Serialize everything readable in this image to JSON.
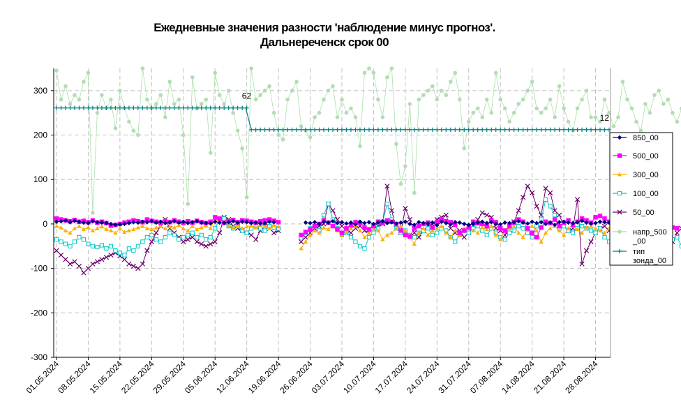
{
  "title_line1": "Ежедневные значения разности 'наблюдение минус прогноз'.",
  "title_line2": "Дальнереченск    срок 00",
  "chart_data": {
    "type": "line",
    "title": "Ежедневные значения разности 'наблюдение минус прогноз'. Дальнереченск    срок 00",
    "xlabel": "",
    "ylabel": "",
    "ylim": [
      -300,
      350
    ],
    "yticks": [
      300,
      200,
      100,
      0,
      -100,
      -200,
      -300
    ],
    "x_start": "2024-05-01",
    "x_end": "2024-08-31",
    "xticks": [
      "01.05.2024",
      "08.05.2024",
      "15.05.2024",
      "22.05.2024",
      "29.05.2024",
      "05.06.2024",
      "12.06.2024",
      "19.06.2024",
      "26.06.2024",
      "03.07.2024",
      "10.07.2024",
      "17.07.2024",
      "24.07.2024",
      "31.07.2024",
      "07.08.2024",
      "14.08.2024",
      "21.08.2024",
      "28.08.2024"
    ],
    "grid": true,
    "legend_position": "right",
    "annotations": [
      {
        "text": "62",
        "x": "2024-06-13",
        "y": 261
      },
      {
        "text": "12",
        "x": "2024-08-31",
        "y": 212
      }
    ],
    "series": [
      {
        "name": "850_00",
        "color": "#000080",
        "marker": "diamond",
        "values": [
          5,
          6,
          8,
          4,
          7,
          5,
          3,
          2,
          6,
          4,
          3,
          2,
          0,
          -2,
          -1,
          0,
          2,
          4,
          3,
          5,
          4,
          6,
          3,
          5,
          2,
          4,
          6,
          3,
          5,
          2,
          4,
          6,
          3,
          2,
          1,
          5,
          3,
          2,
          4,
          6,
          3,
          5,
          4,
          2,
          3,
          1,
          2,
          5,
          4,
          null,
          null,
          null,
          null,
          null,
          null,
          3,
          2,
          4,
          0,
          5,
          3,
          6,
          2,
          4,
          1,
          3,
          -1,
          5,
          2,
          4,
          0,
          3,
          6,
          2,
          4,
          1,
          3,
          5,
          0,
          -2,
          4,
          2,
          1,
          3,
          -3,
          5,
          2,
          -1,
          4,
          3,
          0,
          -2,
          1,
          3,
          5,
          2,
          4,
          0,
          -1,
          3,
          2,
          4,
          6,
          3,
          1,
          5,
          2,
          4,
          0,
          3,
          -2,
          4,
          5,
          3,
          2,
          4,
          7,
          3,
          1,
          2,
          5,
          4,
          3,
          6,
          2,
          4,
          3,
          -1,
          2,
          5,
          3,
          4,
          -2,
          0,
          1
        ]
      },
      {
        "name": "500_00",
        "color": "#ff00ff",
        "marker": "square",
        "values": [
          12,
          10,
          8,
          6,
          9,
          5,
          7,
          4,
          8,
          3,
          5,
          2,
          -4,
          -2,
          0,
          3,
          5,
          8,
          6,
          4,
          10,
          7,
          5,
          3,
          6,
          4,
          8,
          5,
          2,
          6,
          3,
          7,
          4,
          2,
          5,
          15,
          12,
          3,
          6,
          9,
          4,
          8,
          7,
          5,
          3,
          6,
          8,
          10,
          7,
          4,
          null,
          null,
          null,
          null,
          -25,
          -18,
          -12,
          -5,
          0,
          8,
          3,
          -5,
          -12,
          -20,
          -10,
          -3,
          4,
          2,
          -8,
          -12,
          -5,
          5,
          2,
          8,
          5,
          0,
          -15,
          -25,
          -28,
          -10,
          -5,
          0,
          3,
          -8,
          5,
          10,
          6,
          4,
          -2,
          -20,
          -15,
          -8,
          5,
          2,
          0,
          -5,
          8,
          4,
          -10,
          -15,
          -5,
          3,
          10,
          5,
          -10,
          -20,
          -30,
          -8,
          5,
          2,
          10,
          -5,
          3,
          8,
          -2,
          5,
          12,
          8,
          3,
          15,
          18,
          12,
          5,
          20,
          15,
          8,
          3,
          22,
          18,
          10,
          5,
          15,
          12,
          8,
          3,
          -5,
          -8,
          -10
        ]
      },
      {
        "name": "300_00",
        "color": "#ffb000",
        "marker": "triangle",
        "values": [
          -5,
          -8,
          -15,
          -20,
          -10,
          -5,
          -12,
          -8,
          -15,
          -10,
          -6,
          -12,
          -15,
          -20,
          -10,
          -18,
          -15,
          -12,
          -8,
          -5,
          -10,
          -12,
          -8,
          -5,
          -10,
          -6,
          -8,
          -3,
          -10,
          -15,
          -5,
          -12,
          -8,
          -4,
          -10,
          10,
          8,
          6,
          -5,
          -8,
          -3,
          -10,
          -6,
          -4,
          -8,
          -2,
          -5,
          -10,
          -3,
          -6,
          null,
          null,
          null,
          null,
          -55,
          -40,
          -25,
          -15,
          -20,
          -8,
          -12,
          -5,
          -15,
          -25,
          -18,
          -10,
          -5,
          -15,
          -30,
          -20,
          -10,
          -15,
          -35,
          -25,
          -20,
          -10,
          -5,
          -15,
          -30,
          -45,
          -20,
          -10,
          -25,
          -15,
          -10,
          -5,
          -20,
          -30,
          -15,
          -25,
          -10,
          -5,
          -15,
          -20,
          -8,
          -12,
          -5,
          -25,
          -35,
          -15,
          -10,
          -5,
          -20,
          -30,
          -10,
          -5,
          -15,
          -40,
          -20,
          -10,
          -5,
          -15,
          -25,
          -10,
          -5,
          -12,
          -20,
          -8,
          -5,
          -10,
          -15,
          -20,
          -10,
          -5,
          -12,
          -8,
          -15,
          -20,
          -10,
          -5,
          -12,
          -15,
          -20,
          -10,
          -15,
          -45
        ]
      },
      {
        "name": "100_00",
        "color": "#00c8c8",
        "marker": "square-open",
        "values": [
          -35,
          -40,
          -45,
          -50,
          -40,
          -30,
          -35,
          -45,
          -50,
          -52,
          -48,
          -55,
          -50,
          -60,
          -65,
          -70,
          -55,
          -60,
          -50,
          -40,
          -30,
          -25,
          -35,
          -40,
          -30,
          -20,
          -25,
          -35,
          -30,
          -25,
          -20,
          -30,
          -25,
          -35,
          -30,
          -10,
          10,
          12,
          -5,
          -10,
          -5,
          -15,
          -20,
          -10,
          -5,
          -10,
          -15,
          -5,
          -8,
          -10,
          null,
          null,
          null,
          null,
          -30,
          -20,
          -10,
          -5,
          -15,
          20,
          45,
          10,
          -10,
          -25,
          -20,
          -30,
          -40,
          -50,
          -55,
          -30,
          -20,
          -10,
          5,
          45,
          10,
          -10,
          -20,
          -15,
          -25,
          -30,
          -20,
          -15,
          -10,
          -25,
          -20,
          -10,
          -15,
          -30,
          -40,
          -25,
          -15,
          -20,
          -10,
          -5,
          -15,
          -25,
          -10,
          -20,
          -30,
          -35,
          -20,
          -15,
          -5,
          -10,
          -20,
          -30,
          -5,
          10,
          55,
          40,
          20,
          -10,
          -5,
          -15,
          -20,
          -10,
          -5,
          -10,
          -15,
          -20,
          -10,
          -30,
          -40,
          -20,
          -15,
          -10,
          -5,
          -30,
          -45,
          -60,
          -75,
          -50,
          -40,
          -20,
          -30,
          -40,
          -35,
          -30,
          -50
        ]
      },
      {
        "name": "50_00",
        "color": "#6a006a",
        "marker": "x",
        "values": [
          -60,
          -70,
          -80,
          -90,
          -85,
          -95,
          -110,
          -100,
          -90,
          -85,
          -80,
          -75,
          -70,
          -65,
          -72,
          -80,
          -90,
          -95,
          -100,
          -90,
          -60,
          -40,
          -20,
          -5,
          10,
          -10,
          -20,
          -30,
          -40,
          -35,
          -30,
          -40,
          -45,
          -50,
          -45,
          -40,
          -20,
          15,
          10,
          -5,
          -10,
          -15,
          -20,
          -25,
          -35,
          -15,
          -5,
          -10,
          -20,
          -15,
          null,
          null,
          null,
          null,
          -40,
          -30,
          -20,
          -10,
          -5,
          0,
          45,
          30,
          10,
          -5,
          -15,
          -20,
          -10,
          -5,
          -15,
          -20,
          -10,
          -5,
          0,
          85,
          30,
          -10,
          -20,
          35,
          10,
          -20,
          -30,
          -15,
          -5,
          0,
          10,
          15,
          20,
          -10,
          -20,
          -15,
          -30,
          -20,
          -5,
          10,
          25,
          20,
          15,
          -10,
          -15,
          -25,
          -5,
          5,
          30,
          60,
          85,
          70,
          40,
          20,
          80,
          70,
          30,
          20,
          -5,
          -15,
          -10,
          55,
          -90,
          -60,
          -40,
          -20,
          -10,
          -5,
          -15,
          -20,
          -30,
          -10,
          -5,
          -20,
          -40,
          -60,
          -45,
          -30,
          -20,
          -10,
          -15,
          -25,
          -40,
          -20,
          -10,
          -30,
          25
        ]
      },
      {
        "name": "напр_500_00",
        "color": "#b4dcb4",
        "marker": "circle",
        "values": [
          345,
          280,
          310,
          270,
          290,
          280,
          320,
          340,
          25,
          250,
          290,
          260,
          280,
          215,
          300,
          260,
          230,
          210,
          200,
          350,
          280,
          260,
          270,
          290,
          240,
          320,
          270,
          280,
          200,
          45,
          330,
          260,
          270,
          280,
          160,
          340,
          290,
          270,
          300,
          250,
          210,
          170,
          60,
          350,
          280,
          290,
          300,
          310,
          250,
          200,
          190,
          280,
          300,
          320,
          220,
          210,
          195,
          240,
          250,
          280,
          300,
          310,
          240,
          280,
          250,
          260,
          240,
          175,
          340,
          350,
          340,
          280,
          240,
          330,
          350,
          180,
          90,
          130,
          270,
          70,
          280,
          290,
          300,
          310,
          280,
          300,
          290,
          320,
          340,
          280,
          170,
          230,
          250,
          260,
          240,
          280,
          250,
          340,
          280,
          260,
          230,
          250,
          270,
          280,
          300,
          320,
          260,
          250,
          260,
          280,
          240,
          310,
          260,
          230,
          210,
          260,
          280,
          300,
          240,
          240,
          230,
          280,
          250,
          220,
          240,
          320,
          280,
          260,
          230,
          210,
          270,
          250,
          290,
          300,
          270,
          280,
          250,
          230,
          260,
          300,
          270,
          240,
          280,
          345
        ]
      },
      {
        "name": "тип зонда_00",
        "color": "#008080",
        "marker": "plus",
        "segments": [
          {
            "from": "2024-05-01",
            "to": "2024-06-12",
            "value": 261
          },
          {
            "from": "2024-06-13",
            "to": "2024-08-31",
            "value": 212
          }
        ]
      }
    ]
  },
  "legend": [
    {
      "label": "850_00"
    },
    {
      "label": "500_00"
    },
    {
      "label": "300_00"
    },
    {
      "label": "100_00"
    },
    {
      "label": "50_00"
    },
    {
      "label_line1": "напр_500",
      "label_line2": "_00"
    },
    {
      "label_line1": "тип",
      "label_line2": "зонда_00"
    }
  ]
}
